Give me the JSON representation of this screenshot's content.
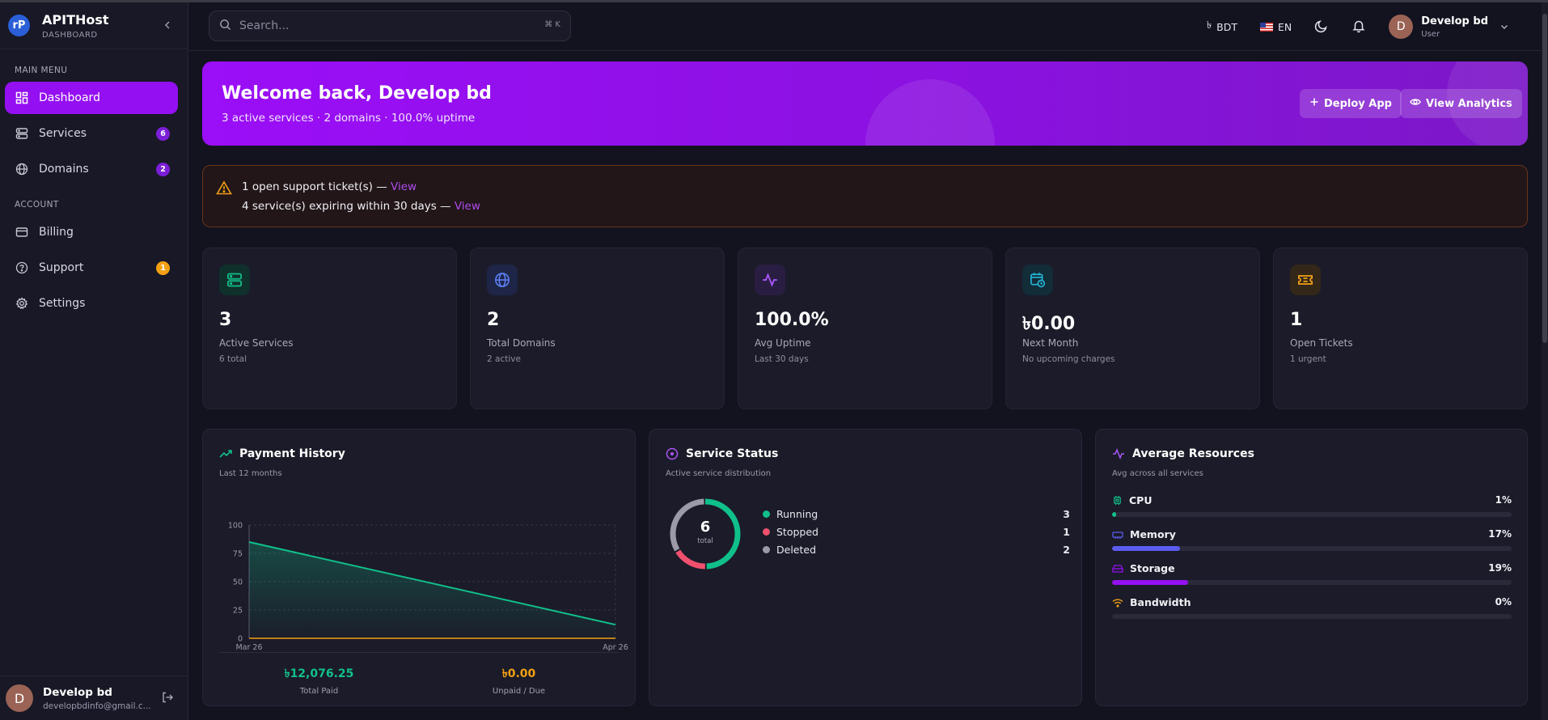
{
  "brand": {
    "logo": "rP",
    "name": "APITHost",
    "sub": "DASHBOARD"
  },
  "sidebar": {
    "main_label": "MAIN MENU",
    "account_label": "ACCOUNT",
    "items": [
      {
        "label": "Dashboard",
        "icon": "grid-icon",
        "badge": ""
      },
      {
        "label": "Services",
        "icon": "server-icon",
        "badge": "6"
      },
      {
        "label": "Domains",
        "icon": "globe-icon",
        "badge": "2"
      },
      {
        "label": "Billing",
        "icon": "card-icon",
        "badge": ""
      },
      {
        "label": "Support",
        "icon": "help-icon",
        "badge": "1"
      },
      {
        "label": "Settings",
        "icon": "gear-icon",
        "badge": ""
      }
    ],
    "user": {
      "initial": "D",
      "name": "Develop bd",
      "email": "developbdinfo@gmail.c..."
    }
  },
  "topbar": {
    "search_placeholder": "Search...",
    "shortcut": "⌘ K",
    "currency_symbol": "৳",
    "currency": "BDT",
    "language": "EN",
    "user": {
      "initial": "D",
      "name": "Develop bd",
      "role": "User"
    }
  },
  "welcome": {
    "title": "Welcome back, Develop bd",
    "subtitle": "3 active services · 2 domains · 100.0% uptime",
    "deploy_label": "Deploy App",
    "analytics_label": "View Analytics"
  },
  "alert": {
    "line1": "1 open support ticket(s) — ",
    "line2": "4 service(s) expiring within 30 days — ",
    "link_label": "View"
  },
  "stats": [
    {
      "value": "3",
      "label": "Active Services",
      "sub": "6 total",
      "icon": "server-icon",
      "color": "#10c08a"
    },
    {
      "value": "2",
      "label": "Total Domains",
      "sub": "2 active",
      "icon": "globe-icon",
      "color": "#5b7cf0"
    },
    {
      "value": "100.0%",
      "label": "Avg Uptime",
      "sub": "Last 30 days",
      "icon": "activity-icon",
      "color": "#a855f7"
    },
    {
      "value": "৳0.00",
      "label": "Next Month",
      "sub": "No upcoming charges",
      "icon": "calendar-clock-icon",
      "color": "#22b8d8"
    },
    {
      "value": "1",
      "label": "Open Tickets",
      "sub": "1 urgent",
      "icon": "ticket-icon",
      "color": "#f2a012"
    }
  ],
  "payment": {
    "title": "Payment History",
    "subtitle": "Last 12 months",
    "total_paid": "৳12,076.25",
    "total_paid_label": "Total Paid",
    "unpaid": "৳0.00",
    "unpaid_label": "Unpaid / Due"
  },
  "chart_data": {
    "type": "line",
    "x": [
      "Mar 26",
      "Apr 26"
    ],
    "xlabel": "",
    "ylabel": "",
    "ylim": [
      0,
      100
    ],
    "yticks": [
      0,
      25,
      50,
      75,
      100
    ],
    "grid": true,
    "series": [
      {
        "values": [
          85,
          12
        ],
        "color": "#10c08a"
      },
      {
        "values": [
          0,
          0
        ],
        "color": "#f2a012"
      }
    ]
  },
  "service_status": {
    "title": "Service Status",
    "subtitle": "Active service distribution",
    "total": "6",
    "total_label": "total",
    "items": [
      {
        "label": "Running",
        "count": 3,
        "color": "#10c08a"
      },
      {
        "label": "Stopped",
        "count": 1,
        "color": "#f0506e"
      },
      {
        "label": "Deleted",
        "count": 2,
        "color": "#9a9aa8"
      }
    ]
  },
  "resources": {
    "title": "Average Resources",
    "subtitle": "Avg across all services",
    "items": [
      {
        "label": "CPU",
        "value": 1,
        "display": "1%",
        "color": "#10c08a",
        "icon": "cpu-icon"
      },
      {
        "label": "Memory",
        "value": 17,
        "display": "17%",
        "color": "#5b5bf0",
        "icon": "memory-icon"
      },
      {
        "label": "Storage",
        "value": 19,
        "display": "19%",
        "color": "#9410f2",
        "icon": "storage-icon"
      },
      {
        "label": "Bandwidth",
        "value": 0,
        "display": "0%",
        "color": "#f2a012",
        "icon": "wifi-icon"
      }
    ]
  }
}
